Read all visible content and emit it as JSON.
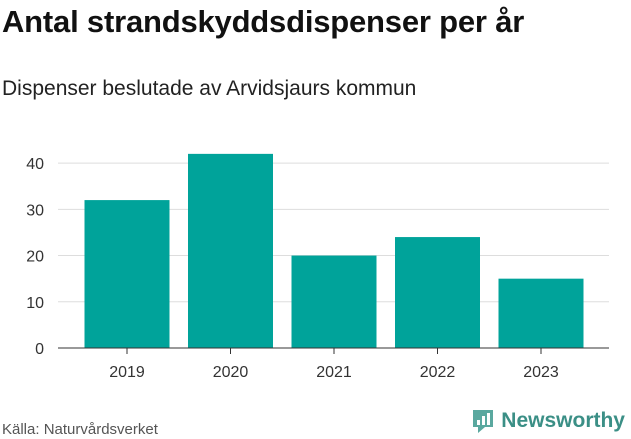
{
  "title": "Antal strandskyddsdispenser per år",
  "subtitle": "Dispenser beslutade av Arvidsjaurs kommun",
  "source": "Källa: Naturvårdsverket",
  "brand": "Newsworthy",
  "colors": {
    "bar": "#00a39a",
    "grid": "#dddddd",
    "brand": "#3b8f86"
  },
  "chart_data": {
    "type": "bar",
    "title": "Antal strandskyddsdispenser per år",
    "subtitle": "Dispenser beslutade av Arvidsjaurs kommun",
    "xlabel": "",
    "ylabel": "",
    "categories": [
      "2019",
      "2020",
      "2021",
      "2022",
      "2023"
    ],
    "values": [
      32,
      42,
      20,
      24,
      15
    ],
    "ylim": [
      0,
      45
    ],
    "yticks": [
      0,
      10,
      20,
      30,
      40
    ],
    "grid": true,
    "legend": "none"
  }
}
